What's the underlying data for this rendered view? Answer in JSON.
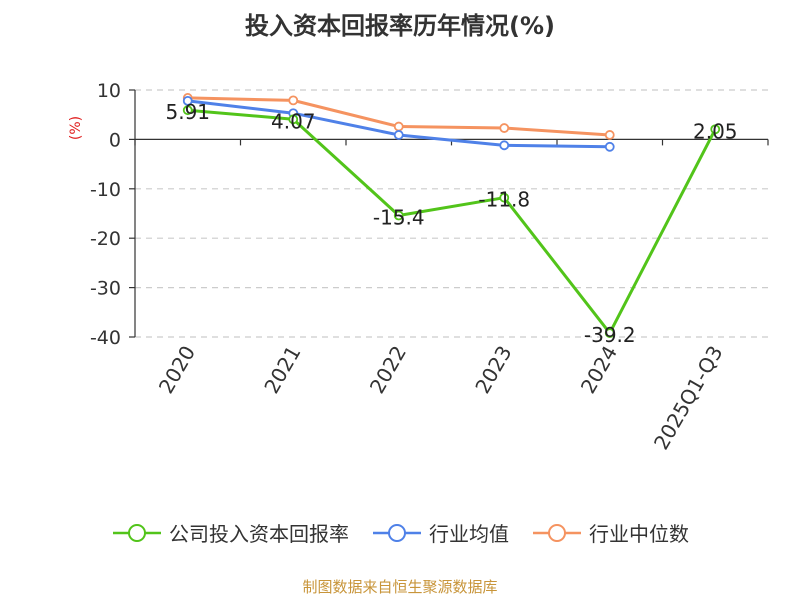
{
  "title": "投入资本回报率历年情况(%)",
  "source_note": "制图数据来自恒生聚源数据库",
  "chart_data": {
    "type": "line",
    "title": "投入资本回报率历年情况(%)",
    "ylabel": "(%)",
    "xlabel": "",
    "categories": [
      "2020",
      "2021",
      "2022",
      "2023",
      "2024",
      "2025Q1-Q3"
    ],
    "ylim": [
      -40,
      10
    ],
    "yticks": [
      10,
      0,
      -10,
      -20,
      -30,
      -40
    ],
    "grid": true,
    "legend_position": "bottom",
    "series": [
      {
        "name": "公司投入资本回报率",
        "color": "#52c41a",
        "values": [
          5.91,
          4.07,
          -15.4,
          -11.8,
          -39.2,
          2.05
        ],
        "labels": [
          "5.91",
          "4.07",
          "-15.4",
          "-11.8",
          "-39.2",
          "2.05"
        ]
      },
      {
        "name": "行业均值",
        "color": "#4f81e8",
        "values": [
          7.8,
          5.3,
          0.9,
          -1.2,
          -1.5,
          null
        ]
      },
      {
        "name": "行业中位数",
        "color": "#f59360",
        "values": [
          8.4,
          7.9,
          2.6,
          2.3,
          0.9,
          null
        ]
      }
    ]
  }
}
